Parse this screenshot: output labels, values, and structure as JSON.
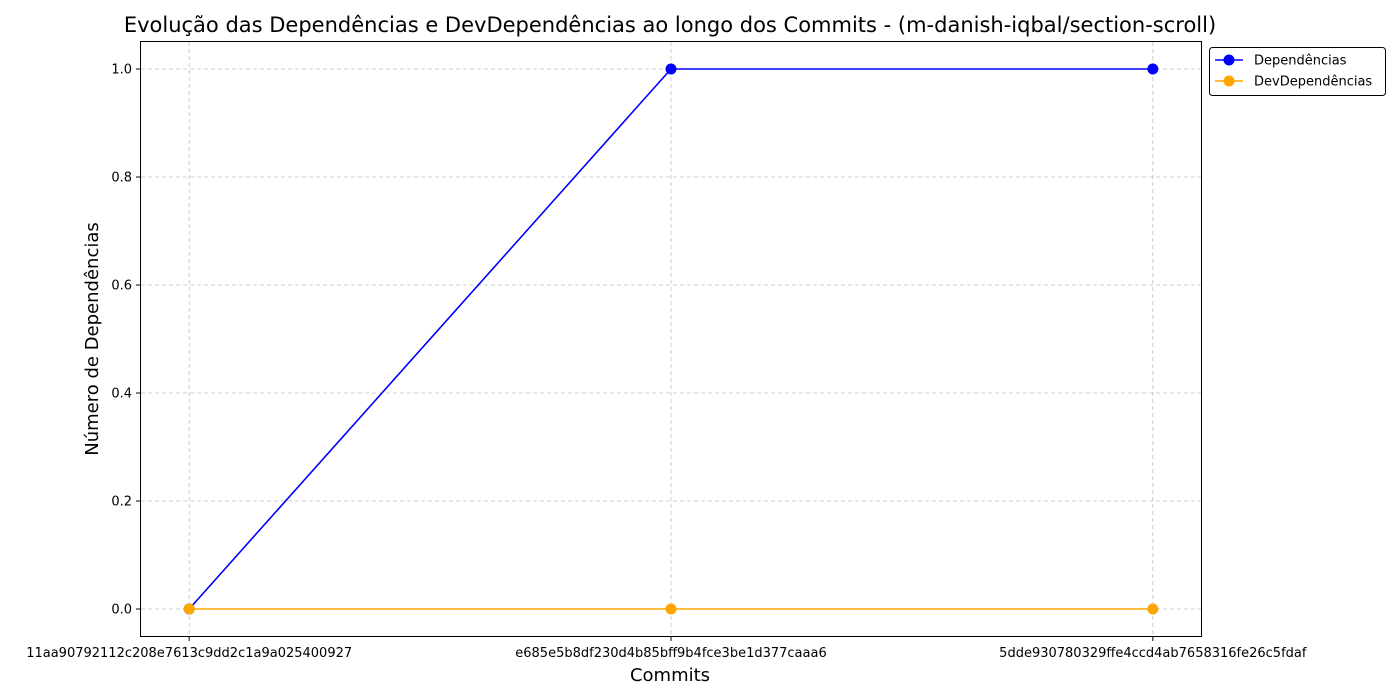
{
  "chart_data": {
    "type": "line",
    "title": "Evolução das Dependências e DevDependências ao longo dos Commits - (m-danish-iqbal/section-scroll)",
    "xlabel": "Commits",
    "ylabel": "Número de Dependências",
    "categories": [
      "11aa90792112c208e7613c9dd2c1a9a025400927",
      "e685e5b8df230d4b85bff9b4fce3be1d377caaa6",
      "5dde930780329ffe4ccd4ab7658316fe26c5fdaf"
    ],
    "ylim": [
      -0.05,
      1.05
    ],
    "yticks": [
      0.0,
      0.2,
      0.4,
      0.6,
      0.8,
      1.0
    ],
    "ytick_labels": [
      "0.0",
      "0.2",
      "0.4",
      "0.6",
      "0.8",
      "1.0"
    ],
    "grid": true,
    "legend_position": "outside top-right",
    "series": [
      {
        "name": "Dependências",
        "values": [
          0,
          1,
          1
        ],
        "color": "#0000ff"
      },
      {
        "name": "DevDependências",
        "values": [
          0,
          0,
          0
        ],
        "color": "#ffa500"
      }
    ]
  }
}
